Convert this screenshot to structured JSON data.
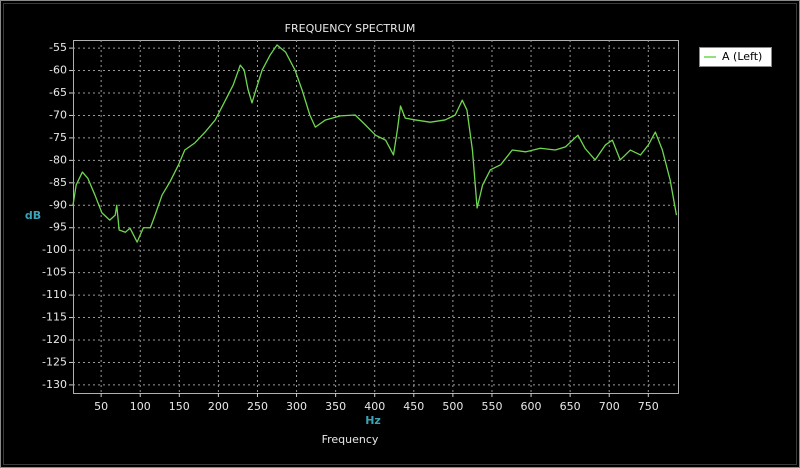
{
  "chart_data": {
    "type": "line",
    "title": "FREQUENCY SPECTRUM",
    "xlabel": "Frequency",
    "xunit": "Hz",
    "ylabel": "dB",
    "xlim": [
      14,
      788
    ],
    "ylim": [
      -131.8,
      -53.2
    ],
    "xticks": [
      50,
      100,
      150,
      200,
      250,
      300,
      350,
      400,
      450,
      500,
      550,
      600,
      650,
      700,
      750
    ],
    "yticks": [
      -55,
      -60,
      -65,
      -70,
      -75,
      -80,
      -85,
      -90,
      -95,
      -100,
      -105,
      -110,
      -115,
      -120,
      -125,
      -130
    ],
    "grid": true,
    "legend": "upper right",
    "x": [
      14,
      18,
      26,
      33,
      42,
      51,
      61,
      68,
      70,
      73,
      81,
      87,
      96,
      104,
      113,
      119,
      128,
      138,
      149,
      157,
      170,
      183,
      196,
      209,
      219,
      228,
      233,
      238,
      243,
      248,
      256,
      266,
      275,
      286,
      298,
      307,
      317,
      324,
      337,
      356,
      375,
      388,
      401,
      414,
      424,
      429,
      433,
      439,
      452,
      471,
      490,
      503,
      512,
      518,
      525,
      531,
      538,
      548,
      561,
      576,
      593,
      612,
      631,
      644,
      660,
      669,
      682,
      695,
      704,
      714,
      727,
      740,
      750,
      759,
      768,
      778,
      786
    ],
    "series": [
      {
        "name": "A (Left)",
        "color": "#6fd64f",
        "values": [
          -90,
          -85.5,
          -82.6,
          -84,
          -87.7,
          -91.7,
          -93.3,
          -92.2,
          -90,
          -95.5,
          -96,
          -95.1,
          -98.2,
          -95,
          -95,
          -92.2,
          -87.7,
          -84.8,
          -81,
          -77.7,
          -76.1,
          -73.7,
          -71,
          -66.6,
          -63.2,
          -58.8,
          -59.9,
          -64.3,
          -67.2,
          -64.3,
          -59.9,
          -56.6,
          -54.3,
          -55.9,
          -59.9,
          -64.3,
          -69.9,
          -72.6,
          -71,
          -70.1,
          -69.9,
          -72.1,
          -74.4,
          -75.5,
          -78.8,
          -73.2,
          -67.9,
          -70.6,
          -71,
          -71.5,
          -71,
          -69.9,
          -66.6,
          -68.8,
          -77.7,
          -90.6,
          -85.5,
          -82.1,
          -81,
          -77.7,
          -78.1,
          -77.3,
          -77.7,
          -77,
          -74.4,
          -77.3,
          -79.9,
          -76.6,
          -75.5,
          -79.9,
          -77.7,
          -78.8,
          -76.6,
          -73.7,
          -77.7,
          -84.4,
          -92.2
        ]
      }
    ]
  }
}
